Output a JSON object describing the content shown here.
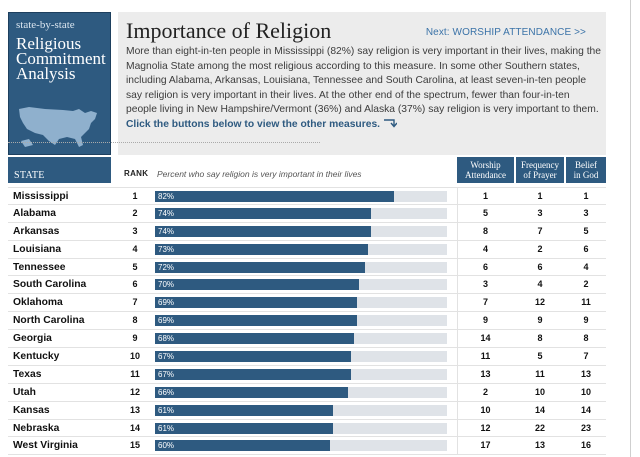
{
  "brand": {
    "small": "state-by-state",
    "line1": "Religious",
    "line2": "Commitment",
    "line3": "Analysis"
  },
  "header": {
    "title": "Importance of Religion",
    "next_label": "Next:  WORSHIP ATTENDANCE  >>",
    "intro": "More than eight-in-ten people in Mississippi (82%) say religion is very important in their lives, making the Magnolia State among the most religious according to this measure. In some other Southern states, including Alabama, Arkansas, Louisiana, Tennessee and South Carolina, at least seven-in-ten people say religion is very important in their lives. At the other end of the spectrum, fewer than four-in-ten people living in New Hampshire/Vermont (36%) and Alaska (37%) say religion is very important to them.",
    "cta": "Click the buttons below to view the other measures."
  },
  "columns": {
    "state": "STATE",
    "rank": "RANK",
    "percent": "Percent who say religion is very important in their lives",
    "worship_1": "Worship",
    "worship_2": "Attendance",
    "prayer_1": "Frequency",
    "prayer_2": "of Prayer",
    "god_1": "Belief",
    "god_2": "in God"
  },
  "colors": {
    "accent": "#2e5a80",
    "track": "#dfe3e8"
  },
  "rows": [
    {
      "state": "Mississippi",
      "rank": "1",
      "pct": 82,
      "pct_label": "82%",
      "worship": "1",
      "prayer": "1",
      "god": "1"
    },
    {
      "state": "Alabama",
      "rank": "2",
      "pct": 74,
      "pct_label": "74%",
      "worship": "5",
      "prayer": "3",
      "god": "3"
    },
    {
      "state": "Arkansas",
      "rank": "3",
      "pct": 74,
      "pct_label": "74%",
      "worship": "8",
      "prayer": "7",
      "god": "5"
    },
    {
      "state": "Louisiana",
      "rank": "4",
      "pct": 73,
      "pct_label": "73%",
      "worship": "4",
      "prayer": "2",
      "god": "6"
    },
    {
      "state": "Tennessee",
      "rank": "5",
      "pct": 72,
      "pct_label": "72%",
      "worship": "6",
      "prayer": "6",
      "god": "4"
    },
    {
      "state": "South Carolina",
      "rank": "6",
      "pct": 70,
      "pct_label": "70%",
      "worship": "3",
      "prayer": "4",
      "god": "2"
    },
    {
      "state": "Oklahoma",
      "rank": "7",
      "pct": 69,
      "pct_label": "69%",
      "worship": "7",
      "prayer": "12",
      "god": "11"
    },
    {
      "state": "North Carolina",
      "rank": "8",
      "pct": 69,
      "pct_label": "69%",
      "worship": "9",
      "prayer": "9",
      "god": "9"
    },
    {
      "state": "Georgia",
      "rank": "9",
      "pct": 68,
      "pct_label": "68%",
      "worship": "14",
      "prayer": "8",
      "god": "8"
    },
    {
      "state": "Kentucky",
      "rank": "10",
      "pct": 67,
      "pct_label": "67%",
      "worship": "11",
      "prayer": "5",
      "god": "7"
    },
    {
      "state": "Texas",
      "rank": "11",
      "pct": 67,
      "pct_label": "67%",
      "worship": "13",
      "prayer": "11",
      "god": "13"
    },
    {
      "state": "Utah",
      "rank": "12",
      "pct": 66,
      "pct_label": "66%",
      "worship": "2",
      "prayer": "10",
      "god": "10"
    },
    {
      "state": "Kansas",
      "rank": "13",
      "pct": 61,
      "pct_label": "61%",
      "worship": "10",
      "prayer": "14",
      "god": "14"
    },
    {
      "state": "Nebraska",
      "rank": "14",
      "pct": 61,
      "pct_label": "61%",
      "worship": "12",
      "prayer": "22",
      "god": "23"
    },
    {
      "state": "West Virginia",
      "rank": "15",
      "pct": 60,
      "pct_label": "60%",
      "worship": "17",
      "prayer": "13",
      "god": "16"
    }
  ]
}
